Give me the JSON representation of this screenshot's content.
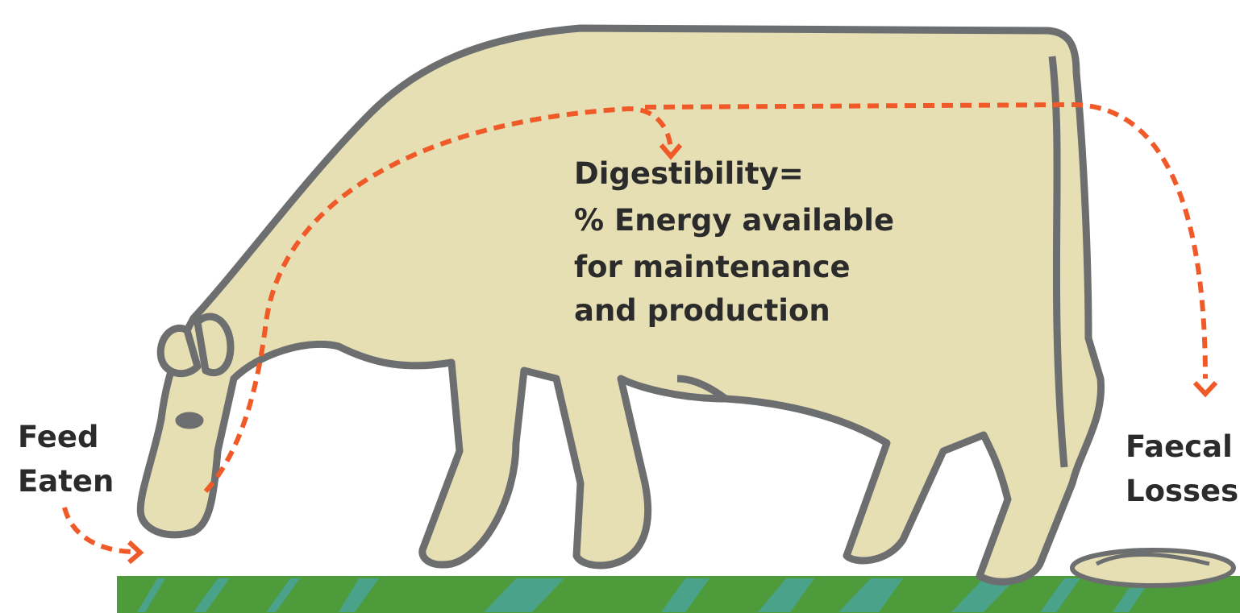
{
  "labels": {
    "feed_eaten": [
      "Feed",
      "Eaten"
    ],
    "digestibility": [
      "Digestibility=",
      "% Energy available",
      "for maintenance",
      "and production"
    ],
    "faecal_losses": [
      "Faecal",
      "Losses"
    ]
  }
}
